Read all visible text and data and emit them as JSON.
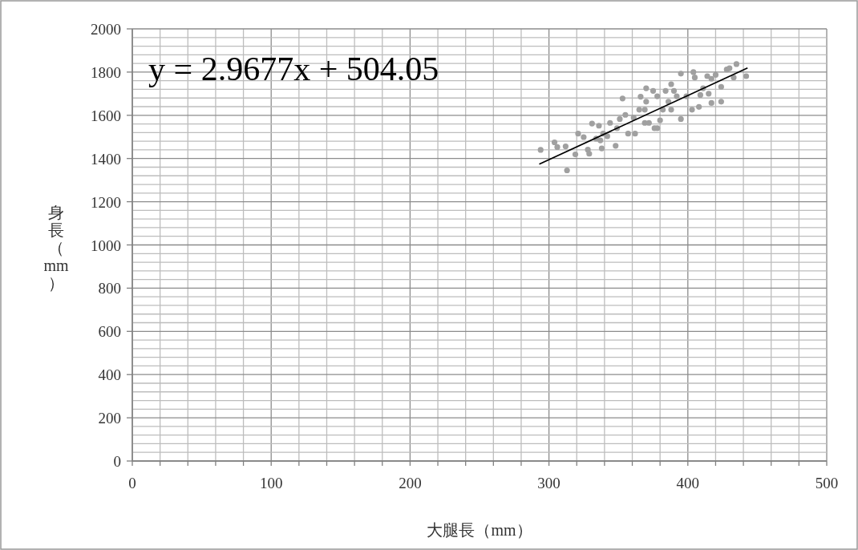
{
  "chart_data": {
    "type": "scatter",
    "xlabel": "大腿長（mm）",
    "ylabel": "身長（mm）",
    "annotations": [
      "y = 2.9677x + 504.05"
    ],
    "xlim": [
      0,
      500
    ],
    "ylim": [
      0,
      2000
    ],
    "xticks": [
      0,
      {
        "value": 20,
        "label": null
      },
      {
        "value": 40,
        "label": null
      },
      {
        "value": 60,
        "label": null
      },
      {
        "value": 80,
        "label": null
      },
      100,
      {
        "value": 120,
        "label": null
      },
      {
        "value": 140,
        "label": null
      },
      {
        "value": 160,
        "label": null
      },
      {
        "value": 180,
        "label": null
      },
      200,
      {
        "value": 220,
        "label": null
      },
      {
        "value": 240,
        "label": null
      },
      {
        "value": 260,
        "label": null
      },
      {
        "value": 280,
        "label": null
      },
      300,
      {
        "value": 320,
        "label": null
      },
      {
        "value": 340,
        "label": null
      },
      {
        "value": 360,
        "label": null
      },
      {
        "value": 380,
        "label": null
      },
      400,
      {
        "value": 420,
        "label": null
      },
      {
        "value": 440,
        "label": null
      },
      {
        "value": 460,
        "label": null
      },
      {
        "value": 480,
        "label": null
      },
      500
    ],
    "yticks": [
      0,
      {
        "value": 40,
        "label": null
      },
      {
        "value": 80,
        "label": null
      },
      {
        "value": 120,
        "label": null
      },
      {
        "value": 160,
        "label": null
      },
      200,
      {
        "value": 240,
        "label": null
      },
      {
        "value": 280,
        "label": null
      },
      {
        "value": 320,
        "label": null
      },
      {
        "value": 360,
        "label": null
      },
      400,
      {
        "value": 440,
        "label": null
      },
      {
        "value": 480,
        "label": null
      },
      {
        "value": 520,
        "label": null
      },
      {
        "value": 560,
        "label": null
      },
      600,
      {
        "value": 640,
        "label": null
      },
      {
        "value": 680,
        "label": null
      },
      {
        "value": 720,
        "label": null
      },
      {
        "value": 760,
        "label": null
      },
      800,
      {
        "value": 840,
        "label": null
      },
      {
        "value": 880,
        "label": null
      },
      {
        "value": 920,
        "label": null
      },
      {
        "value": 960,
        "label": null
      },
      1000,
      {
        "value": 1040,
        "label": null
      },
      {
        "value": 1080,
        "label": null
      },
      {
        "value": 1120,
        "label": null
      },
      {
        "value": 1160,
        "label": null
      },
      1200,
      {
        "value": 1240,
        "label": null
      },
      {
        "value": 1280,
        "label": null
      },
      {
        "value": 1320,
        "label": null
      },
      {
        "value": 1360,
        "label": null
      },
      1400,
      {
        "value": 1440,
        "label": null
      },
      {
        "value": 1480,
        "label": null
      },
      {
        "value": 1520,
        "label": null
      },
      {
        "value": 1560,
        "label": null
      },
      1600,
      {
        "value": 1640,
        "label": null
      },
      {
        "value": 1680,
        "label": null
      },
      {
        "value": 1720,
        "label": null
      },
      {
        "value": 1760,
        "label": null
      },
      1800,
      {
        "value": 1840,
        "label": null
      },
      {
        "value": 1880,
        "label": null
      },
      {
        "value": 1920,
        "label": null
      },
      {
        "value": 1960,
        "label": null
      },
      2000
    ],
    "grid": true,
    "series": [
      {
        "color": "#a0a0a0",
        "marker": "circle",
        "x": [
          294,
          313,
          304,
          306,
          312,
          319,
          321,
          325,
          328,
          329,
          331,
          336,
          337,
          338,
          344,
          342,
          348,
          351,
          353,
          349,
          355,
          357,
          362,
          365,
          366,
          370,
          369,
          361,
          339,
          334,
          375,
          378,
          388,
          395,
          395,
          404,
          405,
          403,
          408,
          414,
          411,
          417,
          417,
          424,
          424,
          428,
          435,
          433,
          442,
          430,
          420,
          399,
          392,
          386,
          382,
          376,
          372,
          380,
          388,
          390,
          415,
          409,
          369,
          370,
          384,
          378
        ],
        "values": [
          1440,
          1345,
          1475,
          1453,
          1456,
          1419,
          1515,
          1499,
          1441,
          1422,
          1562,
          1552,
          1484,
          1447,
          1565,
          1503,
          1459,
          1583,
          1678,
          1540,
          1602,
          1515,
          1515,
          1626,
          1686,
          1725,
          1565,
          1589,
          1515,
          1492,
          1713,
          1540,
          1744,
          1793,
          1583,
          1800,
          1775,
          1626,
          1639,
          1781,
          1725,
          1657,
          1769,
          1663,
          1732,
          1812,
          1837,
          1775,
          1781,
          1818,
          1787,
          1688,
          1688,
          1663,
          1626,
          1540,
          1565,
          1577,
          1626,
          1713,
          1700,
          1694,
          1626,
          1663,
          1713,
          1688
        ]
      },
      {
        "type": "line",
        "color": "#000000",
        "line_style": "solid",
        "x": [
          293,
          443
        ],
        "values": [
          1374,
          1819
        ]
      }
    ]
  }
}
